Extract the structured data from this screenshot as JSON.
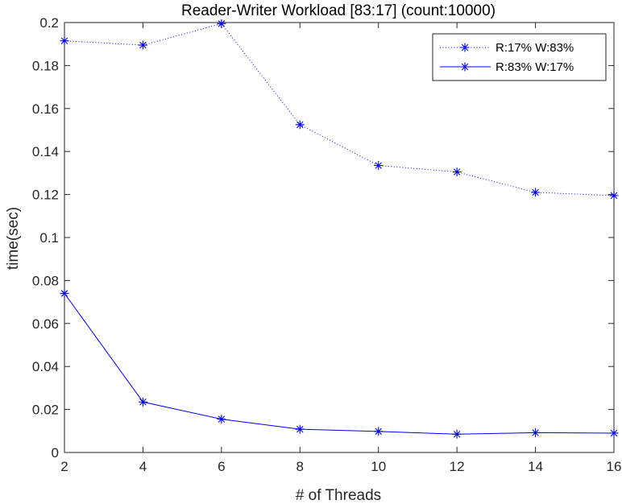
{
  "chart_data": {
    "type": "line",
    "title": "Reader-Writer Workload [83:17] (count:10000)",
    "xlabel": "# of Threads",
    "ylabel": "time(sec)",
    "xlim": [
      2,
      16
    ],
    "ylim": [
      0,
      0.2
    ],
    "xticks": [
      2,
      4,
      6,
      8,
      10,
      12,
      14,
      16
    ],
    "xtick_labels": [
      "2",
      "4",
      "6",
      "8",
      "10",
      "12",
      "14",
      "16"
    ],
    "yticks": [
      0,
      0.02,
      0.04,
      0.06,
      0.08,
      0.1,
      0.12,
      0.14,
      0.16,
      0.18,
      0.2
    ],
    "ytick_labels": [
      "0",
      "0.02",
      "0.04",
      "0.06",
      "0.08",
      "0.1",
      "0.12",
      "0.14",
      "0.16",
      "0.18",
      "0.2"
    ],
    "grid": false,
    "legend_position": "top-right",
    "series": [
      {
        "name": "R:17% W:83%",
        "line_style": "dotted",
        "marker": "asterisk",
        "color": "#0000ff",
        "x": [
          2,
          4,
          6,
          8,
          10,
          12,
          14,
          16
        ],
        "y": [
          0.1915,
          0.1895,
          0.1995,
          0.1525,
          0.1335,
          0.1305,
          0.121,
          0.1195
        ]
      },
      {
        "name": "R:83% W:17%",
        "line_style": "solid",
        "marker": "asterisk",
        "color": "#0000ff",
        "x": [
          2,
          4,
          6,
          8,
          10,
          12,
          14,
          16
        ],
        "y": [
          0.074,
          0.0235,
          0.0155,
          0.0108,
          0.0098,
          0.0085,
          0.0092,
          0.009
        ]
      }
    ]
  }
}
